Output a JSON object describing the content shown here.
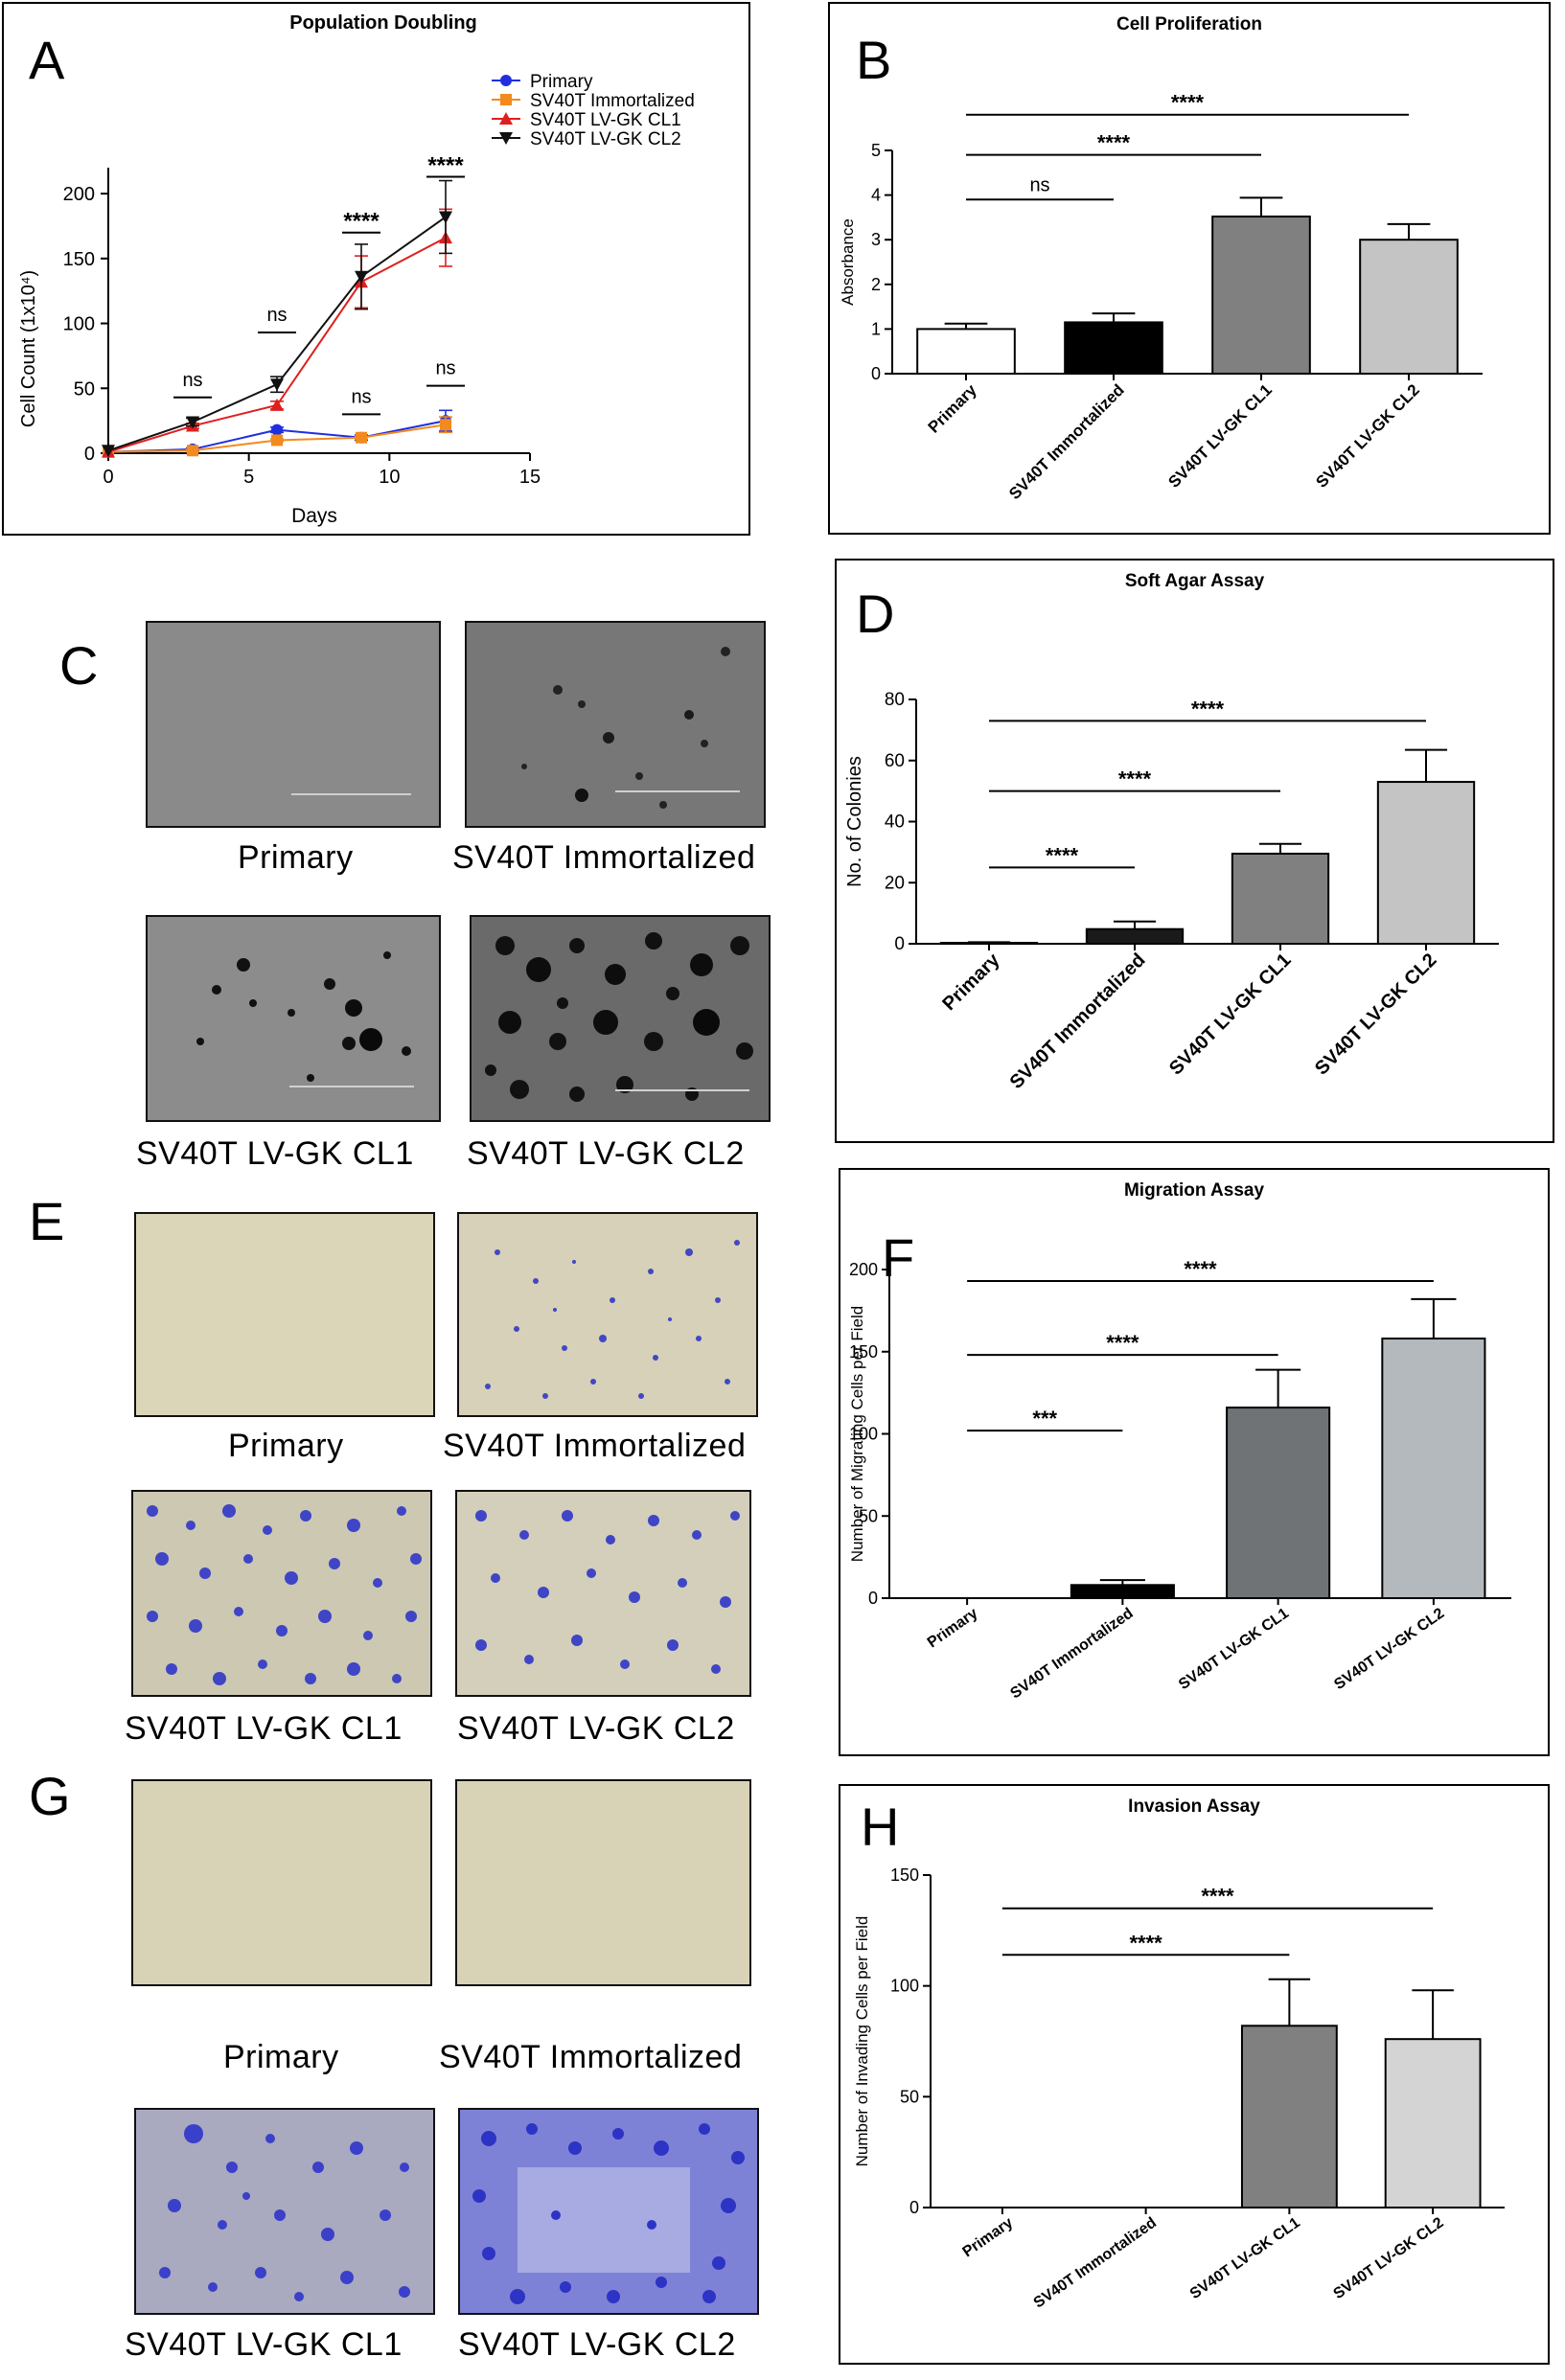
{
  "panels": {
    "A": "A",
    "B": "B",
    "C": "C",
    "D": "D",
    "E": "E",
    "F": "F",
    "G": "G",
    "H": "H"
  },
  "images": {
    "c_primary": "Primary",
    "c_immortalized": "SV40T Immortalized",
    "c_cl1": "SV40T LV-GK CL1",
    "c_cl2": "SV40T LV-GK CL2",
    "e_primary": "Primary",
    "e_immortalized": "SV40T Immortalized",
    "e_cl1": "SV40T LV-GK CL1",
    "e_cl2": "SV40T LV-GK CL2",
    "g_primary": "Primary",
    "g_immortalized": "SV40T Immortalized",
    "g_cl1": "SV40T LV-GK CL1",
    "g_cl2": "SV40T LV-GK CL2",
    "scale_bar_color": "#c8c8c8",
    "soft_agar_bg": "#8e8e8e",
    "transwell_bg": "#d9d3b3",
    "stain_color": "#3d45c8"
  },
  "chart_data": [
    {
      "id": "A",
      "type": "line",
      "title": "Population Doubling",
      "xlabel": "Days",
      "ylabel": "Cell Count (1x10⁴)",
      "xlim": [
        0,
        15
      ],
      "ylim": [
        0,
        220
      ],
      "xticks": [
        0,
        5,
        10,
        15
      ],
      "yticks": [
        0,
        50,
        100,
        150,
        200
      ],
      "legend": "top-right",
      "series": [
        {
          "name": "Primary",
          "color": "#1f2fe0",
          "marker": "circle",
          "x": [
            0,
            3,
            6,
            9,
            12
          ],
          "y": [
            1,
            3,
            18,
            12,
            25
          ],
          "err": [
            0,
            1,
            2,
            2,
            8
          ]
        },
        {
          "name": "SV40T Immortalized",
          "color": "#f28a1e",
          "marker": "square",
          "x": [
            0,
            3,
            6,
            9,
            12
          ],
          "y": [
            1,
            2,
            10,
            12,
            22
          ],
          "err": [
            0,
            1,
            1,
            1,
            6
          ]
        },
        {
          "name": "SV40T LV-GK CL1",
          "color": "#e01e1e",
          "marker": "triangle",
          "x": [
            0,
            3,
            6,
            9,
            12
          ],
          "y": [
            1,
            21,
            37,
            132,
            166
          ],
          "err": [
            0,
            2,
            3,
            20,
            22
          ]
        },
        {
          "name": "SV40T LV-GK CL2",
          "color": "#111111",
          "marker": "triangle-down",
          "x": [
            0,
            3,
            6,
            9,
            12
          ],
          "y": [
            2,
            24,
            53,
            136,
            182
          ],
          "err": [
            0,
            3,
            6,
            25,
            28
          ]
        }
      ],
      "annotations": [
        {
          "text": "ns",
          "x": 3,
          "y": 43
        },
        {
          "text": "ns",
          "x": 6,
          "y": 93
        },
        {
          "text": "****",
          "x": 9,
          "y": 170
        },
        {
          "text": "ns",
          "x": 9,
          "y": 30
        },
        {
          "text": "****",
          "x": 12,
          "y": 213
        },
        {
          "text": "ns",
          "x": 12,
          "y": 52
        }
      ]
    },
    {
      "id": "B",
      "type": "bar",
      "title": "Cell Proliferation",
      "ylabel": "Absorbance",
      "ylim": [
        0,
        5
      ],
      "yticks": [
        0,
        1,
        2,
        3,
        4,
        5
      ],
      "categories": [
        "Primary",
        "SV40T Immortalized",
        "SV40T LV-GK CL1",
        "SV40T LV-GK CL2"
      ],
      "values": [
        1.0,
        1.15,
        3.52,
        3.0
      ],
      "errors": [
        0.12,
        0.2,
        0.42,
        0.35
      ],
      "colors": [
        "#ffffff",
        "#000000",
        "#808080",
        "#c4c4c4"
      ],
      "brackets": [
        {
          "from": 0,
          "to": 1,
          "y": 3.9,
          "text": "ns"
        },
        {
          "from": 0,
          "to": 2,
          "y": 4.9,
          "text": "****"
        },
        {
          "from": 0,
          "to": 3,
          "y": 5.8,
          "text": "****"
        }
      ]
    },
    {
      "id": "D",
      "type": "bar",
      "title": "Soft Agar Assay",
      "ylabel": "No. of Colonies",
      "ylim": [
        0,
        80
      ],
      "yticks": [
        0,
        20,
        40,
        60,
        80
      ],
      "categories": [
        "Primary",
        "SV40T Immortalized",
        "SV40T LV-GK CL1",
        "SV40T LV-GK CL2"
      ],
      "values": [
        0.3,
        4.8,
        29.5,
        53
      ],
      "errors": [
        0.2,
        2.5,
        3.2,
        10.5
      ],
      "colors": [
        "#ffffff",
        "#1a1a1a",
        "#808080",
        "#c4c4c4"
      ],
      "brackets": [
        {
          "from": 0,
          "to": 1,
          "y": 25,
          "text": "****"
        },
        {
          "from": 0,
          "to": 2,
          "y": 50,
          "text": "****"
        },
        {
          "from": 0,
          "to": 3,
          "y": 73,
          "text": "****"
        }
      ]
    },
    {
      "id": "F",
      "type": "bar",
      "title": "Migration Assay",
      "ylabel": "Number of Migrating Cells per Field",
      "ylim": [
        0,
        200
      ],
      "yticks": [
        0,
        50,
        100,
        150,
        200
      ],
      "categories": [
        "Primary",
        "SV40T Immortalized",
        "SV40T LV-GK CL1",
        "SV40T LV-GK CL2"
      ],
      "values": [
        0,
        8,
        116,
        158
      ],
      "errors": [
        0,
        3,
        23,
        24
      ],
      "colors": [
        "#ffffff",
        "#000000",
        "#6f7376",
        "#b4b9bd"
      ],
      "brackets": [
        {
          "from": 0,
          "to": 1,
          "y": 102,
          "text": "***"
        },
        {
          "from": 0,
          "to": 2,
          "y": 148,
          "text": "****"
        },
        {
          "from": 0,
          "to": 3,
          "y": 193,
          "text": "****"
        }
      ]
    },
    {
      "id": "H",
      "type": "bar",
      "title": "Invasion Assay",
      "ylabel": "Number of Invading Cells per Field",
      "ylim": [
        0,
        150
      ],
      "yticks": [
        0,
        50,
        100,
        150
      ],
      "categories": [
        "Primary",
        "SV40T Immortalized",
        "SV40T LV-GK CL1",
        "SV40T LV-GK CL2"
      ],
      "values": [
        0,
        0,
        82,
        76
      ],
      "errors": [
        0,
        0,
        21,
        22
      ],
      "colors": [
        "#ffffff",
        "#000000",
        "#808080",
        "#d4d4d4"
      ],
      "brackets": [
        {
          "from": 0,
          "to": 2,
          "y": 114,
          "text": "****"
        },
        {
          "from": 0,
          "to": 3,
          "y": 135,
          "text": "****"
        }
      ]
    }
  ]
}
